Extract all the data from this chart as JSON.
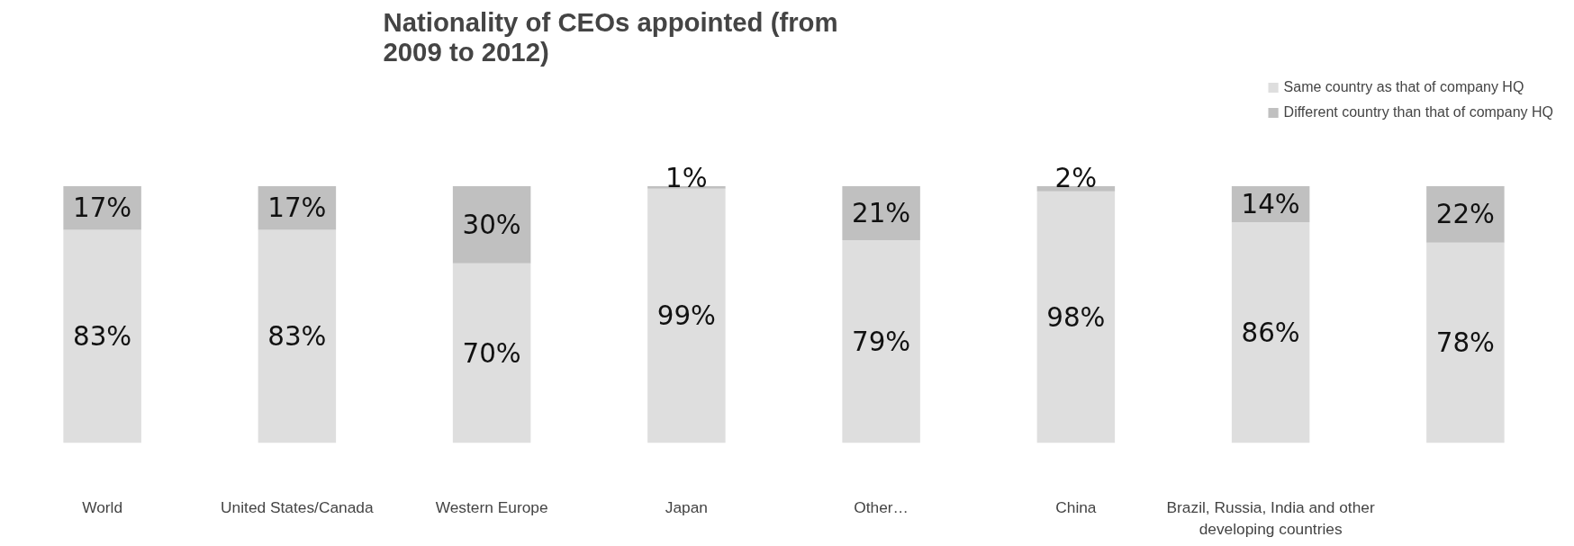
{
  "chart_data": {
    "type": "bar",
    "title": "Nationality of CEOs appointed (from 2009 to 2012)",
    "categories": [
      "World",
      "United States/Canada",
      "Western Europe",
      "Japan",
      "Other…",
      "China",
      "Brazil, Russia, India and other developing countries",
      null
    ],
    "stacked": true,
    "legend": "top right",
    "series": [
      {
        "name": "Same country as that of company HQ",
        "color": "#dedede",
        "values": [
          83,
          83,
          70,
          99,
          79,
          98,
          86,
          78
        ],
        "value_labels": [
          "83%",
          "83%",
          "70%",
          "99%",
          "79%",
          "98%",
          "86%",
          "78%"
        ]
      },
      {
        "name": "Different country than that of company HQ",
        "color": "#c0c0c0",
        "values": [
          17,
          17,
          30,
          1,
          21,
          2,
          14,
          22
        ],
        "value_labels": [
          "17%",
          "17%",
          "30%",
          "1%",
          "21%",
          "2%",
          "14%",
          "22%"
        ]
      }
    ]
  }
}
